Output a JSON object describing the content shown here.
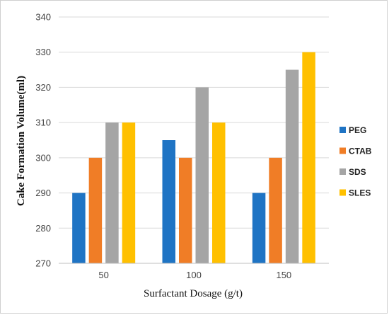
{
  "chart_data": {
    "type": "bar",
    "title": "",
    "xlabel": "Surfactant Dosage (g/t)",
    "ylabel": "Cake Formation Volume(ml)",
    "categories": [
      "50",
      "100",
      "150"
    ],
    "ylim": [
      270,
      340
    ],
    "yticks": [
      270,
      280,
      290,
      300,
      310,
      320,
      330,
      340
    ],
    "grid": "horizontal",
    "legend_position": "right",
    "series": [
      {
        "name": "PEG",
        "color": "#1F74C4",
        "values": [
          290,
          305,
          290
        ]
      },
      {
        "name": "CTAB",
        "color": "#F07D26",
        "values": [
          300,
          300,
          300
        ]
      },
      {
        "name": "SDS",
        "color": "#A5A5A5",
        "values": [
          310,
          320,
          325
        ]
      },
      {
        "name": "SLES",
        "color": "#FFC000",
        "values": [
          310,
          310,
          330
        ]
      }
    ]
  }
}
